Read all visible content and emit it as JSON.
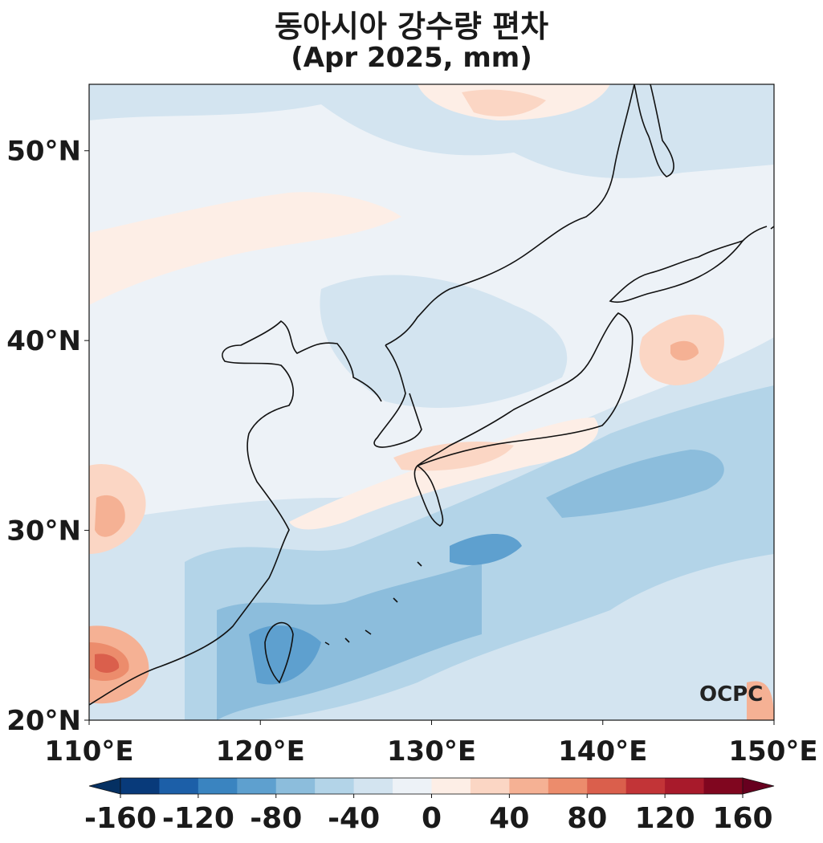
{
  "title": {
    "line1": "동아시아 강수량 편차",
    "line2": "(Apr 2025, mm)"
  },
  "map": {
    "extent": {
      "lon": [
        110,
        150
      ],
      "lat": [
        20,
        53.5
      ]
    },
    "lon_ticks": [
      110,
      120,
      130,
      140,
      150
    ],
    "lat_ticks": [
      20,
      30,
      40,
      50
    ],
    "lon_tick_labels": [
      "110°E",
      "120°E",
      "130°E",
      "140°E",
      "150°E"
    ],
    "lat_tick_labels": [
      "20°N",
      "30°N",
      "40°N",
      "50°N"
    ],
    "logo_text": "OCPC"
  },
  "colorbar": {
    "levels": [
      -160,
      -140,
      -120,
      -100,
      -80,
      -60,
      -40,
      -20,
      0,
      20,
      40,
      60,
      80,
      100,
      120,
      140,
      160
    ],
    "colors": [
      "#083a7a",
      "#1c5fa8",
      "#3a84c0",
      "#5ea0cf",
      "#8cbddc",
      "#b3d4e8",
      "#d3e4f0",
      "#edf2f7",
      "#fdeee6",
      "#fbd6c4",
      "#f5b194",
      "#ec8c6c",
      "#da5f4c",
      "#c23437",
      "#a81a2b",
      "#80061f"
    ],
    "under_color": "#053062",
    "over_color": "#67001f",
    "tick_values": [
      -160,
      -120,
      -80,
      -40,
      0,
      40,
      80,
      120,
      160
    ],
    "tick_labels": [
      "-160",
      "-120",
      "-80",
      "-40",
      "0",
      "40",
      "80",
      "120",
      "160"
    ]
  }
}
